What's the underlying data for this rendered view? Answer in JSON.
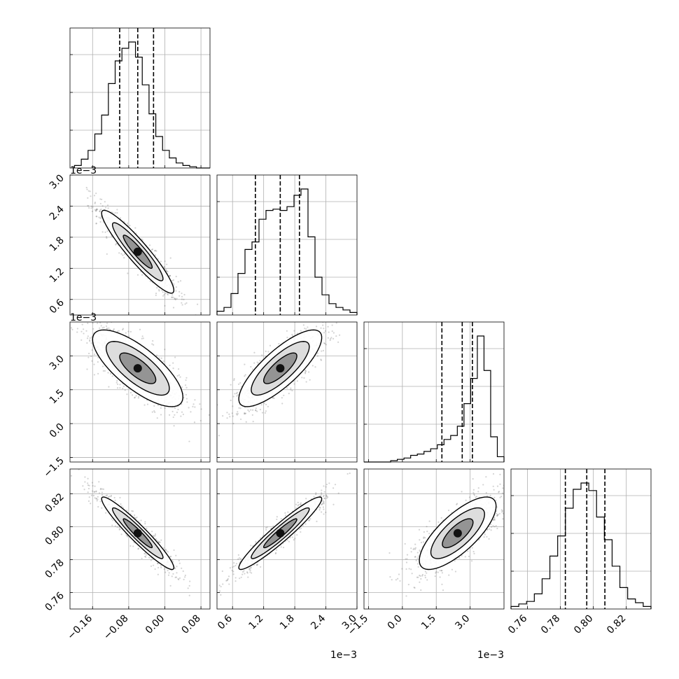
{
  "chart_data": {
    "type": "corner",
    "title": "",
    "parameters": [
      {
        "name": "",
        "range": [
          -0.21,
          0.1
        ],
        "ticks": [
          -0.16,
          -0.08,
          0.0,
          0.08
        ],
        "tick_labels": [
          "−0.16",
          "−0.08",
          "0.00",
          "0.08"
        ],
        "offset": ""
      },
      {
        "name": "",
        "range": [
          0.3,
          3.0
        ],
        "ticks": [
          0.6,
          1.2,
          1.8,
          2.4,
          3.0
        ],
        "tick_labels": [
          "0.6",
          "1.2",
          "1.8",
          "2.4",
          "3.0"
        ],
        "offset": "1e−3"
      },
      {
        "name": "",
        "range": [
          -1.7,
          4.5
        ],
        "ticks": [
          -1.5,
          0.0,
          1.5,
          3.0
        ],
        "tick_labels": [
          "−1.5",
          "0.0",
          "1.5",
          "3.0"
        ],
        "offset": "1e−3"
      },
      {
        "name": "",
        "range": [
          0.75,
          0.835
        ],
        "ticks": [
          0.76,
          0.78,
          0.8,
          0.82
        ],
        "tick_labels": [
          "0.76",
          "0.78",
          "0.80",
          "0.82"
        ],
        "offset": ""
      }
    ],
    "marginals": [
      {
        "param": 0,
        "quantiles": [
          -0.1,
          -0.06,
          -0.025
        ],
        "bins_range": [
          -0.2,
          0.1
        ],
        "counts": [
          0.02,
          0.07,
          0.14,
          0.27,
          0.42,
          0.67,
          0.85,
          0.95,
          1.0,
          0.88,
          0.66,
          0.43,
          0.25,
          0.14,
          0.08,
          0.04,
          0.02,
          0.01,
          0.0,
          0.0
        ]
      },
      {
        "param": 1,
        "quantiles": [
          1.04,
          1.52,
          1.89
        ],
        "bins_range": [
          0.3,
          3.0
        ],
        "counts": [
          0.03,
          0.06,
          0.17,
          0.33,
          0.52,
          0.58,
          0.76,
          0.83,
          0.84,
          0.83,
          0.86,
          0.95,
          1.0,
          0.62,
          0.3,
          0.16,
          0.09,
          0.06,
          0.04,
          0.02
        ]
      },
      {
        "param": 2,
        "quantiles": [
          1.75,
          2.65,
          3.1
        ],
        "bins_range": [
          -1.7,
          4.5
        ],
        "counts": [
          0.0,
          0.0,
          0.0,
          0.0,
          0.01,
          0.02,
          0.03,
          0.05,
          0.06,
          0.08,
          0.1,
          0.13,
          0.17,
          0.2,
          0.27,
          0.44,
          0.63,
          0.95,
          0.69,
          0.19,
          0.04
        ]
      },
      {
        "param": 3,
        "quantiles": [
          0.783,
          0.796,
          0.807
        ],
        "bins_range": [
          0.75,
          0.835
        ],
        "counts": [
          0.02,
          0.04,
          0.06,
          0.12,
          0.24,
          0.42,
          0.58,
          0.8,
          0.95,
          1.0,
          0.94,
          0.73,
          0.55,
          0.34,
          0.17,
          0.08,
          0.05,
          0.02
        ]
      }
    ],
    "pairs": [
      {
        "x": 0,
        "y": 1,
        "mean": [
          -0.06,
          1.52
        ],
        "sd": [
          0.04,
          0.4
        ],
        "corr": -0.93
      },
      {
        "x": 0,
        "y": 2,
        "mean": [
          -0.06,
          2.45
        ],
        "sd": [
          0.05,
          0.85
        ],
        "corr": -0.75
      },
      {
        "x": 1,
        "y": 2,
        "mean": [
          1.52,
          2.45
        ],
        "sd": [
          0.4,
          0.85
        ],
        "corr": 0.8
      },
      {
        "x": 0,
        "y": 3,
        "mean": [
          -0.06,
          0.796
        ],
        "sd": [
          0.04,
          0.011
        ],
        "corr": -0.95
      },
      {
        "x": 1,
        "y": 3,
        "mean": [
          1.52,
          0.796
        ],
        "sd": [
          0.4,
          0.011
        ],
        "corr": 0.95
      },
      {
        "x": 2,
        "y": 3,
        "mean": [
          2.45,
          0.796
        ],
        "sd": [
          0.85,
          0.011
        ],
        "corr": 0.75
      }
    ],
    "grid": true
  }
}
